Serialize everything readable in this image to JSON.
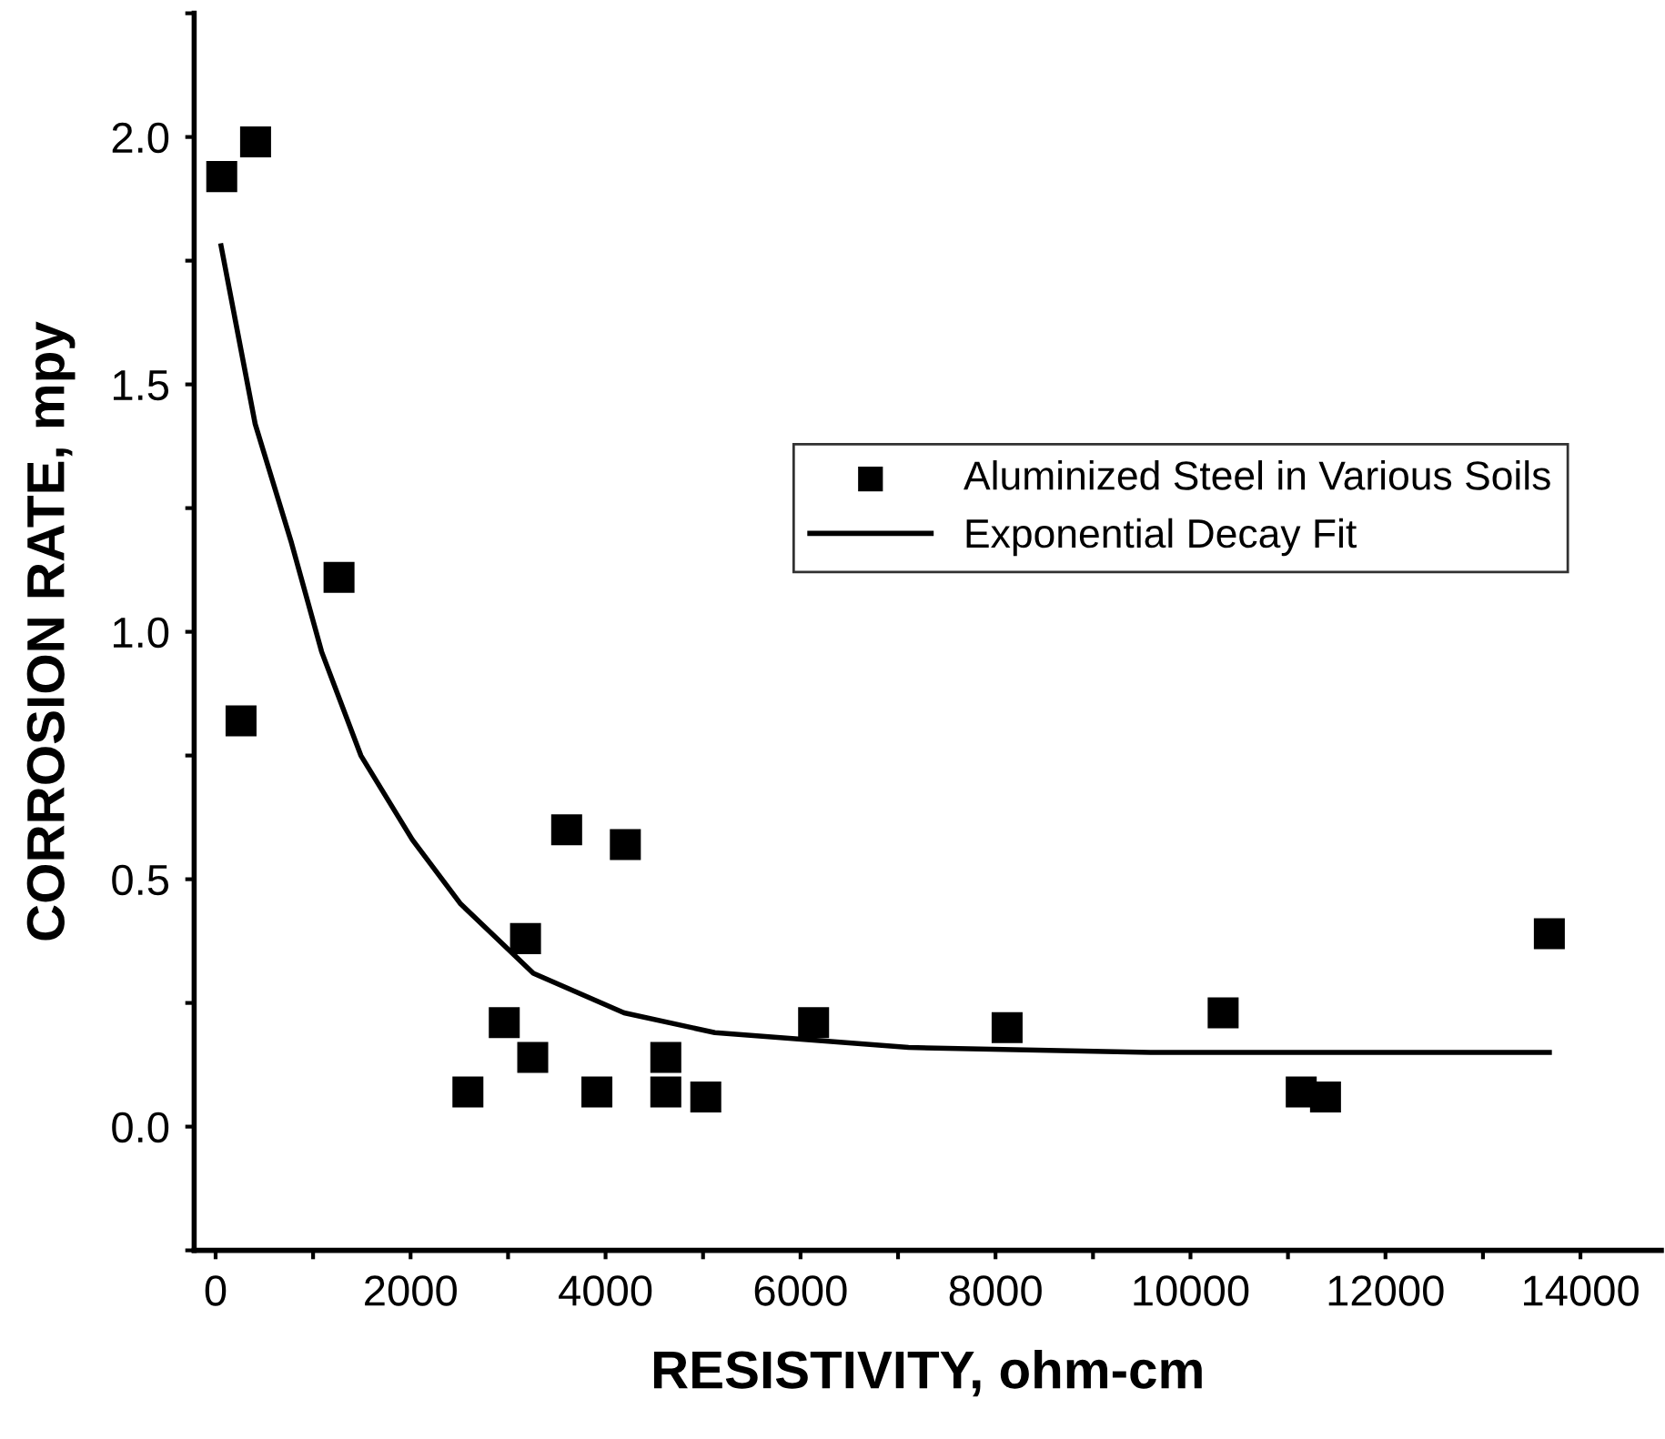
{
  "chart_data": {
    "type": "scatter",
    "xlabel": "RESISTIVITY, ohm-cm",
    "ylabel": "CORROSION RATE, mpy",
    "xlim": [
      -220,
      14830
    ],
    "ylim": [
      -0.25,
      2.25
    ],
    "xticks": [
      0,
      {
        "value": 1000,
        "label": null
      },
      2000,
      {
        "value": 3000,
        "label": null
      },
      4000,
      {
        "value": 5000,
        "label": null
      },
      6000,
      {
        "value": 7000,
        "label": null
      },
      8000,
      {
        "value": 9000,
        "label": null
      },
      10000,
      {
        "value": 11000,
        "label": null
      },
      12000,
      {
        "value": 13000,
        "label": null
      },
      14000
    ],
    "yticks": [
      {
        "value": -0.25,
        "label": null
      },
      {
        "value": 0,
        "label": "0.0"
      },
      {
        "value": 0.25,
        "label": null
      },
      {
        "value": 0.5,
        "label": "0.5"
      },
      {
        "value": 0.75,
        "label": null
      },
      {
        "value": 1.0,
        "label": "1.0"
      },
      {
        "value": 1.25,
        "label": null
      },
      {
        "value": 1.5,
        "label": "1.5"
      },
      {
        "value": 1.75,
        "label": null
      },
      {
        "value": 2.0,
        "label": "2.0"
      },
      {
        "value": 2.25,
        "label": null
      }
    ],
    "grid": false,
    "legend": "right",
    "marker": "square",
    "series": [
      {
        "name": "Aluminized Steel in Various Soils",
        "color": "#000000",
        "x": [
          63,
          410,
          1266,
          261,
          3601,
          4203,
          3179,
          2961,
          3253,
          2588,
          3911,
          4618,
          4618,
          5028,
          6134,
          8119,
          10335,
          11136,
          11385,
          13681
        ],
        "values": [
          1.92,
          1.99,
          1.11,
          0.82,
          0.6,
          0.57,
          0.38,
          0.21,
          0.14,
          0.07,
          0.07,
          0.14,
          0.07,
          0.06,
          0.21,
          0.2,
          0.23,
          0.07,
          0.06,
          0.39
        ]
      },
      {
        "name": "Exponential Decay Fit",
        "type": "line",
        "color": "#000000",
        "line_style": "solid",
        "marker": "none",
        "x": [
          56,
          406,
          778,
          1087,
          1490,
          2018,
          2514,
          3259,
          4190,
          5121,
          7108,
          9590,
          13681
        ],
        "values": [
          1.78,
          1.42,
          1.18,
          0.96,
          0.75,
          0.58,
          0.45,
          0.31,
          0.23,
          0.19,
          0.16,
          0.15,
          0.15
        ]
      }
    ]
  }
}
